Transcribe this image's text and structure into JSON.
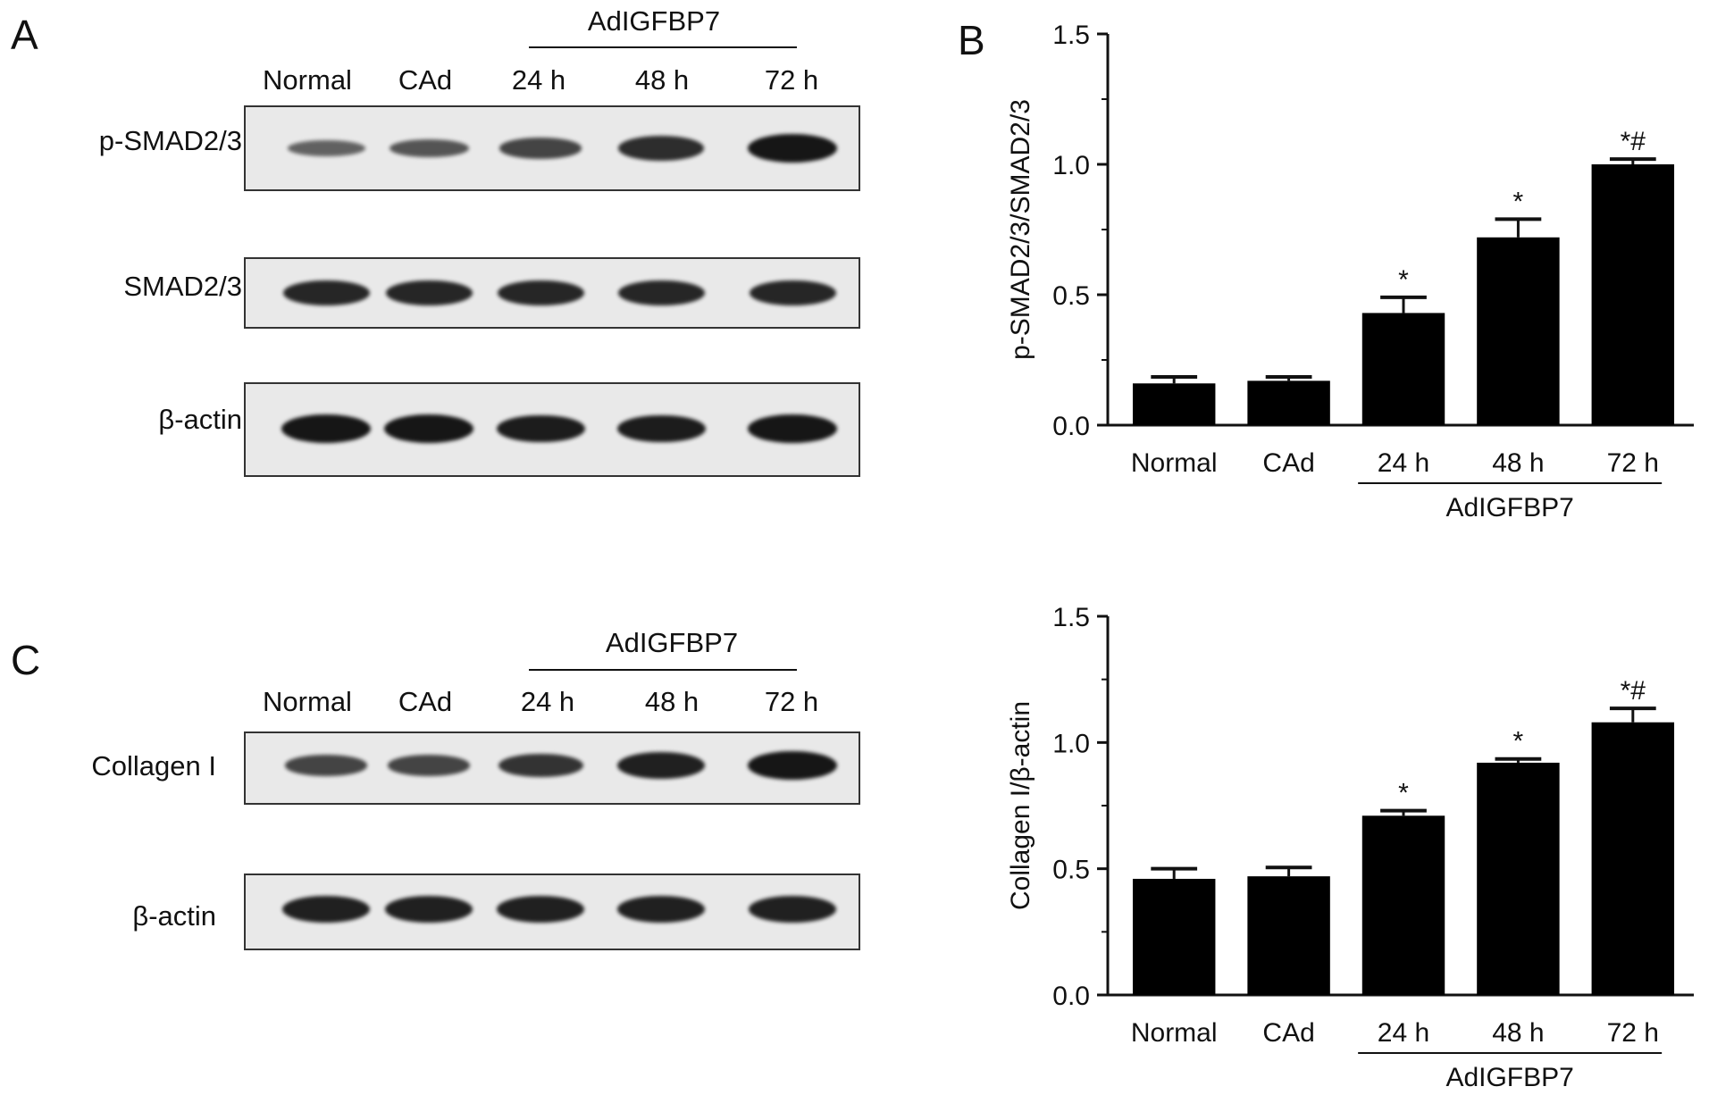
{
  "panels": {
    "a": {
      "letter": "A",
      "group_label": "AdIGFBP7",
      "lanes": [
        "Normal",
        "CAd",
        "24 h",
        "48 h",
        "72 h"
      ],
      "rows": [
        {
          "label": "p-SMAD2/3",
          "intensity": [
            0.35,
            0.45,
            0.6,
            0.8,
            1.0
          ]
        },
        {
          "label": "SMAD2/3",
          "intensity": [
            0.85,
            0.85,
            0.85,
            0.85,
            0.85
          ]
        },
        {
          "label": "β-actin",
          "intensity": [
            1.0,
            1.0,
            0.95,
            0.95,
            1.0
          ]
        }
      ]
    },
    "b": {
      "letter": "B"
    },
    "c": {
      "letter": "C",
      "group_label": "AdIGFBP7",
      "lanes": [
        "Normal",
        "CAd",
        "24 h",
        "48 h",
        "72 h"
      ],
      "rows": [
        {
          "label": "Collagen I",
          "intensity": [
            0.6,
            0.6,
            0.75,
            0.9,
            1.0
          ]
        },
        {
          "label": "β-actin",
          "intensity": [
            0.9,
            0.9,
            0.9,
            0.9,
            0.9
          ]
        }
      ]
    }
  },
  "chart_data": [
    {
      "type": "bar",
      "categories": [
        "Normal",
        "CAd",
        "24 h",
        "48 h",
        "72 h"
      ],
      "values": [
        0.16,
        0.17,
        0.43,
        0.72,
        1.0
      ],
      "errors": [
        0.025,
        0.015,
        0.06,
        0.07,
        0.02
      ],
      "annotations": [
        "",
        "",
        "*",
        "*",
        "*#"
      ],
      "group_label": "AdIGFBP7",
      "group_span": [
        "24 h",
        "72 h"
      ],
      "title": "",
      "xlabel": "",
      "ylabel": "p-SMAD2/3/SMAD2/3",
      "ylim": [
        0,
        1.5
      ],
      "yticks": [
        "0.0",
        "0.5",
        "1.0",
        "1.5"
      ],
      "bar_color": "#000000",
      "grid": false
    },
    {
      "type": "bar",
      "categories": [
        "Normal",
        "CAd",
        "24 h",
        "48 h",
        "72 h"
      ],
      "values": [
        0.46,
        0.47,
        0.71,
        0.92,
        1.08
      ],
      "errors": [
        0.04,
        0.035,
        0.02,
        0.015,
        0.055
      ],
      "annotations": [
        "",
        "",
        "*",
        "*",
        "*#"
      ],
      "group_label": "AdIGFBP7",
      "group_span": [
        "24 h",
        "72 h"
      ],
      "title": "",
      "xlabel": "",
      "ylabel": "Collagen I/β-actin",
      "ylim": [
        0,
        1.5
      ],
      "yticks": [
        "0.0",
        "0.5",
        "1.0",
        "1.5"
      ],
      "bar_color": "#000000",
      "grid": false
    }
  ]
}
